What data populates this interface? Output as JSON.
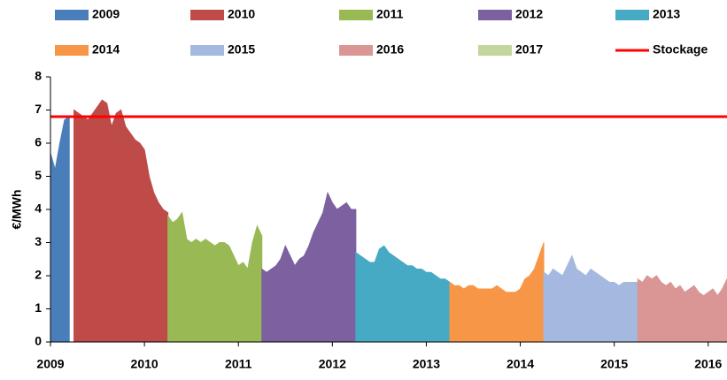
{
  "chart_data": {
    "type": "area",
    "ylabel": "€/MWh",
    "xlim": [
      2009,
      2016.2
    ],
    "ylim": [
      0,
      8
    ],
    "xticks": [
      2009,
      2010,
      2011,
      2012,
      2013,
      2014,
      2015,
      2016
    ],
    "yticks": [
      0,
      1,
      2,
      3,
      4,
      5,
      6,
      7,
      8
    ],
    "series": [
      {
        "name": "2009",
        "color": "#4a7ebb",
        "x": [
          2009.0,
          2009.05,
          2009.1,
          2009.15,
          2009.2
        ],
        "values": [
          5.7,
          5.2,
          6.0,
          6.7,
          6.8
        ]
      },
      {
        "name": "2010",
        "color": "#be4b48",
        "x": [
          2009.25,
          2009.3,
          2009.35,
          2009.4,
          2009.45,
          2009.5,
          2009.55,
          2009.6,
          2009.65,
          2009.7,
          2009.75,
          2009.8,
          2009.85,
          2009.9,
          2009.95,
          2010.0,
          2010.05,
          2010.1,
          2010.15,
          2010.2,
          2010.25
        ],
        "values": [
          7.0,
          6.9,
          6.8,
          6.7,
          6.9,
          7.1,
          7.3,
          7.2,
          6.5,
          6.9,
          7.0,
          6.5,
          6.3,
          6.1,
          6.0,
          5.8,
          5.0,
          4.5,
          4.2,
          4.0,
          3.9
        ]
      },
      {
        "name": "2011",
        "color": "#98b954",
        "x": [
          2010.25,
          2010.3,
          2010.35,
          2010.4,
          2010.45,
          2010.5,
          2010.55,
          2010.6,
          2010.65,
          2010.7,
          2010.75,
          2010.8,
          2010.85,
          2010.9,
          2010.95,
          2011.0,
          2011.05,
          2011.1,
          2011.15,
          2011.2,
          2011.25
        ],
        "values": [
          3.8,
          3.6,
          3.7,
          3.9,
          3.1,
          3.0,
          3.1,
          3.0,
          3.1,
          3.0,
          2.9,
          3.0,
          3.0,
          2.9,
          2.6,
          2.3,
          2.4,
          2.2,
          3.0,
          3.5,
          3.2
        ]
      },
      {
        "name": "2012",
        "color": "#7d60a0",
        "x": [
          2011.25,
          2011.3,
          2011.35,
          2011.4,
          2011.45,
          2011.5,
          2011.55,
          2011.6,
          2011.65,
          2011.7,
          2011.75,
          2011.8,
          2011.85,
          2011.9,
          2011.95,
          2012.0,
          2012.05,
          2012.1,
          2012.15,
          2012.2,
          2012.25
        ],
        "values": [
          2.2,
          2.1,
          2.2,
          2.3,
          2.5,
          2.9,
          2.6,
          2.3,
          2.5,
          2.6,
          2.9,
          3.3,
          3.6,
          3.9,
          4.5,
          4.2,
          4.0,
          4.1,
          4.2,
          4.0,
          4.0
        ]
      },
      {
        "name": "2013",
        "color": "#46aac5",
        "x": [
          2012.25,
          2012.3,
          2012.35,
          2012.4,
          2012.45,
          2012.5,
          2012.55,
          2012.6,
          2012.65,
          2012.7,
          2012.75,
          2012.8,
          2012.85,
          2012.9,
          2012.95,
          2013.0,
          2013.05,
          2013.1,
          2013.15,
          2013.2,
          2013.25
        ],
        "values": [
          2.7,
          2.6,
          2.5,
          2.4,
          2.4,
          2.8,
          2.9,
          2.7,
          2.6,
          2.5,
          2.4,
          2.3,
          2.3,
          2.2,
          2.2,
          2.1,
          2.1,
          2.0,
          1.9,
          1.9,
          1.8
        ]
      },
      {
        "name": "2014",
        "color": "#f79646",
        "x": [
          2013.25,
          2013.3,
          2013.35,
          2013.4,
          2013.45,
          2013.5,
          2013.55,
          2013.6,
          2013.65,
          2013.7,
          2013.75,
          2013.8,
          2013.85,
          2013.9,
          2013.95,
          2014.0,
          2014.05,
          2014.1,
          2014.15,
          2014.2,
          2014.25
        ],
        "values": [
          1.8,
          1.7,
          1.7,
          1.6,
          1.7,
          1.7,
          1.6,
          1.6,
          1.6,
          1.6,
          1.7,
          1.6,
          1.5,
          1.5,
          1.5,
          1.6,
          1.9,
          2.0,
          2.2,
          2.6,
          3.0
        ]
      },
      {
        "name": "2015",
        "color": "#a5b9e0",
        "x": [
          2014.25,
          2014.3,
          2014.35,
          2014.4,
          2014.45,
          2014.5,
          2014.55,
          2014.6,
          2014.65,
          2014.7,
          2014.75,
          2014.8,
          2014.85,
          2014.9,
          2014.95,
          2015.0,
          2015.05,
          2015.1,
          2015.15,
          2015.2,
          2015.25
        ],
        "values": [
          2.1,
          2.0,
          2.2,
          2.1,
          2.0,
          2.3,
          2.6,
          2.2,
          2.1,
          2.0,
          2.2,
          2.1,
          2.0,
          1.9,
          1.8,
          1.8,
          1.7,
          1.8,
          1.8,
          1.8,
          1.8
        ]
      },
      {
        "name": "2016",
        "color": "#d99694",
        "x": [
          2015.25,
          2015.3,
          2015.35,
          2015.4,
          2015.45,
          2015.5,
          2015.55,
          2015.6,
          2015.65,
          2015.7,
          2015.75,
          2015.8,
          2015.85,
          2015.9,
          2015.95,
          2016.0,
          2016.05,
          2016.1,
          2016.15,
          2016.2
        ],
        "values": [
          1.9,
          1.8,
          2.0,
          1.9,
          2.0,
          1.8,
          1.7,
          1.8,
          1.6,
          1.7,
          1.5,
          1.6,
          1.7,
          1.5,
          1.4,
          1.5,
          1.6,
          1.4,
          1.6,
          1.9
        ]
      },
      {
        "name": "2017",
        "color": "#c3d69b",
        "x": [],
        "values": []
      }
    ],
    "reference_line": {
      "name": "Stockage",
      "color": "#ff0000",
      "value": 6.8
    }
  }
}
